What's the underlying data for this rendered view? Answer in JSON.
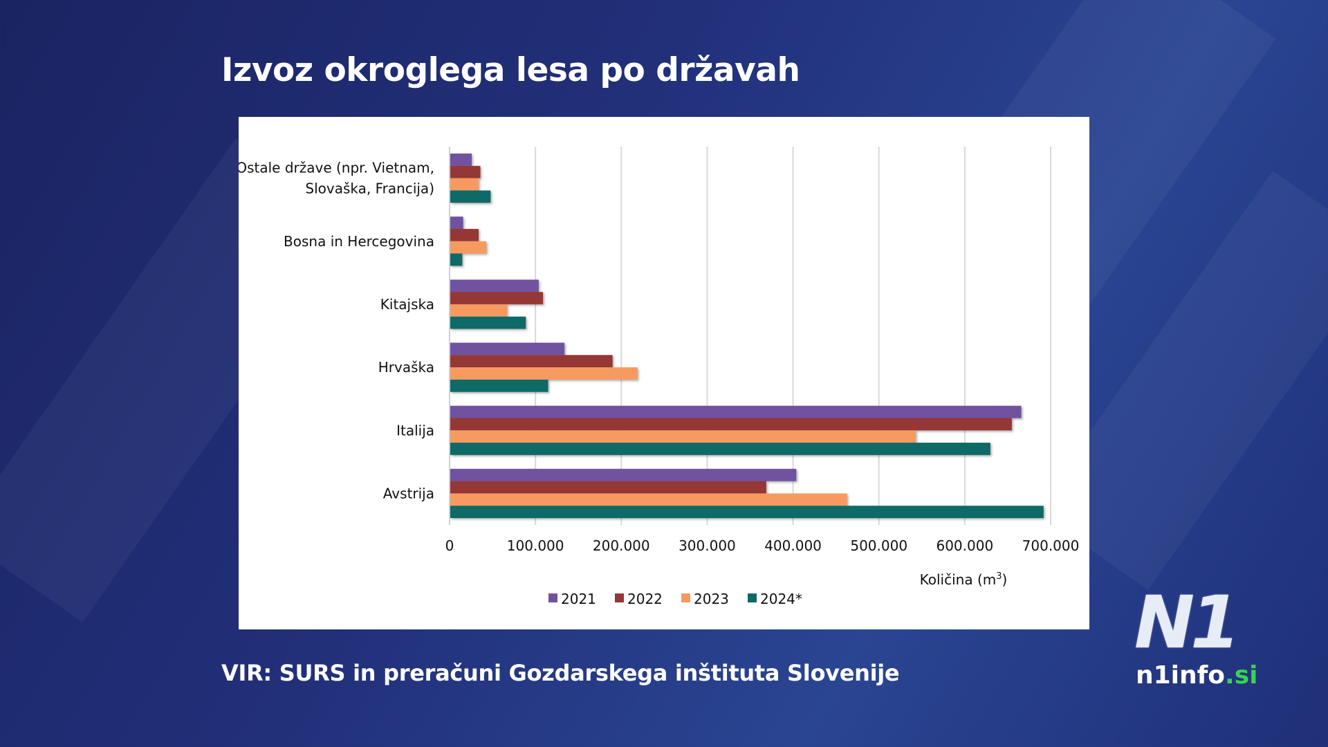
{
  "title": "Izvoz okroglega lesa po državah",
  "source": "VIR: SURS in preračuni Gozdarskega inštituta Slovenije",
  "logo": {
    "mark": "N1",
    "site_main": "n1info",
    "site_tld": ".si"
  },
  "chart_data": {
    "type": "bar",
    "orientation": "horizontal",
    "categories": [
      [
        "Ostale države (npr. Vietnam,",
        "Slovaška, Francija)"
      ],
      [
        "Bosna in Hercegovina"
      ],
      [
        "Kitajska"
      ],
      [
        "Hrvaška"
      ],
      [
        "Italija"
      ],
      [
        "Avstrija"
      ]
    ],
    "series": [
      {
        "name": "2021",
        "color": "#7052a0",
        "values": [
          25000,
          15000,
          103000,
          133000,
          665000,
          403000
        ]
      },
      {
        "name": "2022",
        "color": "#953735",
        "values": [
          35000,
          33000,
          108000,
          189000,
          654000,
          368000
        ]
      },
      {
        "name": "2023",
        "color": "#f79a60",
        "values": [
          33000,
          42000,
          66000,
          218000,
          542000,
          462000
        ]
      },
      {
        "name": "2024*",
        "color": "#0e6a66",
        "values": [
          47000,
          14000,
          88000,
          114000,
          629000,
          691000
        ]
      }
    ],
    "xlabel_main": "Količina (m",
    "xlabel_sup": "3",
    "xlabel_end": ")",
    "xlim": [
      0,
      700000
    ],
    "xticks": [
      "0",
      "100.000",
      "200.000",
      "300.000",
      "400.000",
      "500.000",
      "600.000",
      "700.000"
    ],
    "grid": "vertical",
    "legend": "bottom"
  }
}
